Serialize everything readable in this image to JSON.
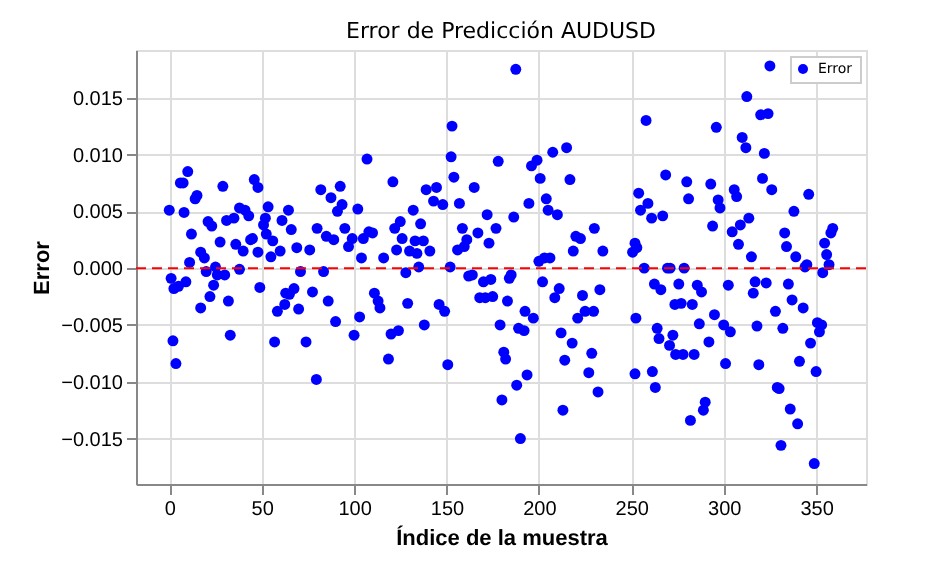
{
  "chart_data": {
    "type": "scatter",
    "title": "Error de Predicción AUDUSD",
    "xlabel": "Índice de la muestra",
    "ylabel": "Error",
    "xlim": [
      -18,
      377
    ],
    "xticks": [
      0,
      50,
      100,
      150,
      200,
      250,
      300,
      350
    ],
    "ylim": [
      -0.019,
      0.0192
    ],
    "yticks": [
      {
        "value": -0.015,
        "label": "−0.015"
      },
      {
        "value": -0.01,
        "label": "−0.010"
      },
      {
        "value": -0.005,
        "label": "−0.005"
      },
      {
        "value": 0,
        "label": "0.000"
      },
      {
        "value": 0.005,
        "label": "0.005"
      },
      {
        "value": 0.01,
        "label": "0.010"
      },
      {
        "value": 0.015,
        "label": "0.015"
      }
    ],
    "grid": true,
    "legend": "top right",
    "marker": "circle",
    "ref_lines": [
      {
        "axis": "y",
        "value": 0,
        "color": "#ff0000",
        "line_style": "dashed"
      }
    ],
    "series": [
      {
        "name": "Error",
        "color": "#0000ff",
        "x": [
          0,
          1,
          2.5,
          2,
          3.6,
          5,
          6,
          7.5,
          8,
          10,
          9,
          11,
          12,
          14,
          15,
          17,
          17,
          19,
          20,
          21,
          22,
          23,
          24,
          25,
          26,
          27.5,
          29,
          30,
          31,
          32,
          33,
          35,
          36,
          38,
          38,
          40,
          41,
          43,
          44,
          45,
          46,
          48,
          48,
          49,
          51,
          52,
          52.5,
          53.5,
          55,
          56,
          57,
          58.5,
          60,
          61,
          62.5,
          63,
          64.5,
          66,
          65,
          67.5,
          69,
          70,
          71,
          74,
          76,
          77.5,
          79.6,
          80,
          82,
          83.5,
          85,
          86,
          87.5,
          89,
          90,
          91,
          92.5,
          93.5,
          95,
          97,
          99,
          100,
          102,
          103,
          104,
          105,
          107,
          108,
          110,
          111,
          113,
          114,
          116,
          118.6,
          120,
          121,
          122,
          123,
          124,
          125,
          126,
          128,
          129,
          130,
          132,
          133,
          134,
          135,
          136,
          137.5,
          138,
          139,
          141,
          143,
          144.6,
          146,
          148,
          149,
          150.7,
          152,
          153,
          152.5,
          154,
          156,
          157,
          158.6,
          159.6,
          161,
          162,
          164,
          165,
          167,
          168,
          170,
          171,
          172,
          173,
          174,
          175,
          176.8,
          178,
          179,
          180,
          181,
          182,
          183,
          184,
          185,
          186.4,
          187.5,
          188,
          189,
          190,
          192,
          192.5,
          193.6,
          194.6,
          196,
          197,
          199,
          200,
          200.7,
          202,
          203,
          204,
          205,
          206,
          207.5,
          208.6,
          210,
          211,
          212,
          213,
          214,
          215,
          216.8,
          218,
          218.6,
          220,
          221,
          222.5,
          223.6,
          225,
          227,
          228.6,
          229.6,
          230,
          232,
          233,
          234.6,
          250.7,
          252,
          253,
          252.5,
          252,
          254,
          255,
          257,
          258,
          259,
          261,
          261.4,
          262.5,
          263,
          264,
          265,
          266,
          267,
          268.6,
          269.6,
          270.7,
          271,
          272.5,
          273.6,
          274,
          275.7,
          277,
          278,
          278.6,
          280,
          281,
          282,
          283,
          284,
          285.7,
          286.8,
          288,
          289,
          290,
          292,
          293,
          294,
          295,
          296,
          297,
          298,
          300,
          301,
          302.5,
          303.6,
          304.6,
          305.7,
          307,
          308,
          309,
          310,
          312,
          312.5,
          313.6,
          315,
          316,
          317,
          318,
          319,
          320,
          321,
          322,
          323,
          324,
          325,
          326,
          328,
          329,
          330,
          331,
          332,
          333,
          334,
          335,
          336,
          337,
          338,
          339,
          340,
          341,
          343,
          344,
          345,
          346,
          347,
          349,
          350,
          350.7,
          351.8,
          353,
          353.6,
          354.6,
          355.7,
          357,
          358,
          359
        ],
        "values": [
          0.0051,
          -0.0009,
          -0.0018,
          -0.0064,
          -0.0084,
          -0.0016,
          0.0075,
          0.0075,
          0.0049,
          0.0085,
          -0.0012,
          0.0005,
          0.003,
          0.0061,
          0.0064,
          0.0014,
          -0.0035,
          0.0009,
          -0.0003,
          0.0041,
          -0.0025,
          0.0037,
          -0.0015,
          0.0001,
          -0.0006,
          0.0023,
          0.0072,
          -0.0006,
          0.0042,
          -0.0029,
          -0.0059,
          0.0044,
          0.0021,
          -0.0001,
          0.0053,
          0.0015,
          0.0051,
          0.0046,
          0.0025,
          0.0026,
          0.0078,
          0.0071,
          0.0014,
          -0.0017,
          0.0038,
          0.0044,
          0.003,
          0.0054,
          0.001,
          0.0024,
          -0.0065,
          -0.0038,
          0.0015,
          0.0042,
          -0.0032,
          -0.0022,
          0.0051,
          0.0034,
          -0.0023,
          -0.0018,
          0.0018,
          -0.0036,
          -0.0003,
          -0.0065,
          0.0016,
          -0.0021,
          -0.0098,
          0.0035,
          0.0069,
          -0.0003,
          0.0028,
          -0.0029,
          0.0062,
          0.0025,
          -0.0047,
          0.005,
          0.0072,
          0.0056,
          0.0035,
          0.0019,
          0.0026,
          -0.0059,
          0.0052,
          -0.0043,
          0.0009,
          0.0026,
          0.0096,
          0.0032,
          0.0031,
          -0.0022,
          -0.0029,
          -0.0035,
          0.0009,
          -0.008,
          -0.0058,
          0.0076,
          0.0035,
          0.0016,
          -0.0055,
          0.0041,
          0.0026,
          -0.0004,
          -0.0031,
          0.0015,
          0.0051,
          0.0024,
          0.0013,
          0.0001,
          0.0039,
          0.0024,
          -0.005,
          0.0069,
          0.0015,
          0.0059,
          0.0071,
          -0.0032,
          0.0056,
          -0.0038,
          -0.0085,
          0.0001,
          0.0125,
          0.0098,
          0.008,
          0.0016,
          0.0057,
          0.0035,
          0.0019,
          0.0025,
          -0.0007,
          -0.0006,
          0.0071,
          0.0031,
          -0.0026,
          -0.0012,
          -0.0026,
          0.0047,
          0.0022,
          -0.001,
          -0.0025,
          0.0035,
          0.0094,
          -0.005,
          -0.0116,
          -0.0074,
          -0.008,
          -0.0029,
          -0.0009,
          -0.0006,
          0.0045,
          0.0175,
          -0.0103,
          -0.0053,
          -0.015,
          -0.0055,
          -0.0038,
          -0.0094,
          0.0057,
          0.009,
          -0.0044,
          0.0095,
          0.0006,
          0.0079,
          -0.0012,
          0.0009,
          0.0061,
          0.0051,
          0.0009,
          0.0102,
          -0.0026,
          0.0047,
          -0.0018,
          -0.0057,
          -0.0125,
          -0.0081,
          0.0106,
          0.0078,
          -0.0066,
          0.0015,
          0.0028,
          -0.0044,
          0.0026,
          -0.0024,
          -0.0038,
          -0.0092,
          -0.0075,
          -0.0038,
          0.0035,
          -0.0109,
          -0.0019,
          0.0015,
          0.0014,
          0.0022,
          0.0018,
          -0.0044,
          -0.0093,
          0.0066,
          0.0051,
          0.0,
          0.013,
          0.0057,
          0.0044,
          -0.0091,
          -0.0014,
          -0.0105,
          -0.0053,
          -0.0062,
          -0.0019,
          0.0046,
          0.0082,
          0.0,
          -0.0068,
          0.0,
          -0.0059,
          -0.0032,
          -0.0076,
          -0.0014,
          -0.0031,
          -0.0076,
          0.0,
          0.0076,
          0.0061,
          -0.0134,
          -0.0032,
          -0.0076,
          -0.0015,
          -0.0049,
          -0.0021,
          -0.0125,
          -0.0118,
          -0.0065,
          0.0074,
          0.0037,
          -0.0041,
          0.0124,
          0.006,
          0.0053,
          -0.005,
          -0.0084,
          -0.0015,
          -0.0056,
          0.0032,
          0.0069,
          0.0063,
          0.0021,
          0.0038,
          0.0115,
          0.0106,
          0.0151,
          0.0044,
          0.001,
          -0.0022,
          -0.0012,
          -0.0051,
          -0.0085,
          0.0135,
          0.0079,
          0.0101,
          -0.0013,
          0.0136,
          0.0178,
          0.0069,
          -0.0038,
          -0.0105,
          -0.0106,
          -0.0156,
          -0.0053,
          0.0031,
          0.0019,
          -0.0014,
          -0.0124,
          -0.0028,
          0.005,
          0.001,
          -0.0137,
          -0.0082,
          -0.0035,
          0.0001,
          0.0003,
          0.0065,
          -0.0066,
          -0.0172,
          -0.0091,
          -0.0048,
          -0.0056,
          -0.005,
          -0.0004,
          0.0022,
          0.0012,
          0.0003,
          0.0031,
          0.0035
        ]
      }
    ]
  }
}
